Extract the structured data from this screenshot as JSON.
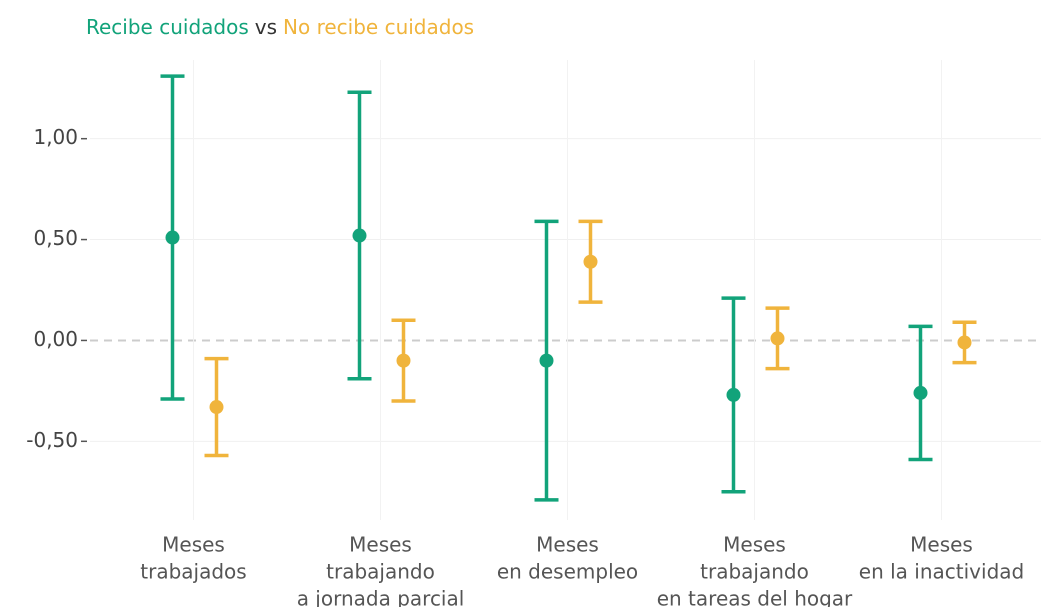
{
  "chart_data": {
    "type": "errorbar",
    "title_joiner": "vs",
    "categories": [
      [
        "Meses",
        "trabajados"
      ],
      [
        "Meses",
        "trabajando",
        "a jornada parcial"
      ],
      [
        "Meses",
        "en desempleo"
      ],
      [
        "Meses",
        "trabajando",
        "en tareas del hogar"
      ],
      [
        "Meses",
        "en la inactividad"
      ]
    ],
    "series": [
      {
        "name": "Recibe cuidados",
        "color": "#12a37a",
        "values": [
          0.51,
          0.52,
          -0.1,
          -0.27,
          -0.26
        ],
        "errors": [
          0.8,
          0.71,
          0.69,
          0.48,
          0.33
        ]
      },
      {
        "name": "No recibe cuidados",
        "color": "#f0b43c",
        "values": [
          -0.33,
          -0.1,
          0.39,
          0.01,
          -0.01
        ],
        "errors": [
          0.24,
          0.2,
          0.2,
          0.15,
          0.1
        ]
      }
    ],
    "ylim": [
      -0.89,
      1.39
    ],
    "yticks": [
      {
        "value": -0.5,
        "label": "-0,50"
      },
      {
        "value": 0,
        "label": "0,00"
      },
      {
        "value": 0.5,
        "label": "0,50"
      },
      {
        "value": 1,
        "label": "1,00"
      }
    ],
    "grid": true,
    "zero_line": true
  }
}
